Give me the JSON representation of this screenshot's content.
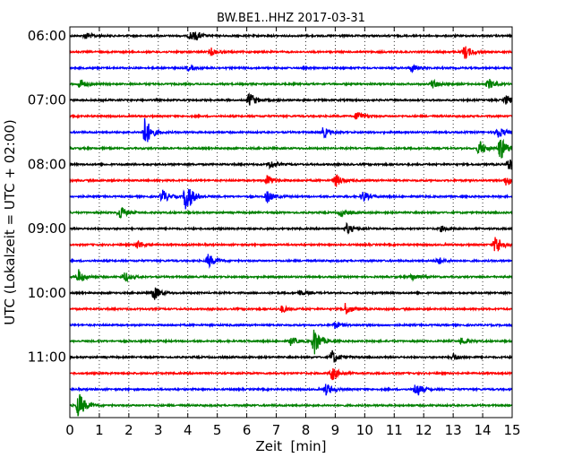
{
  "chart_data": {
    "type": "line",
    "title": "BW.BE1..HHZ 2017-03-31",
    "xlabel": "Zeit  [min]",
    "ylabel": "UTC (Lokalzeit = UTC + 02:00)",
    "xlim": [
      0,
      15
    ],
    "x_ticks": [
      "0",
      "1",
      "2",
      "3",
      "4",
      "5",
      "6",
      "7",
      "8",
      "9",
      "10",
      "11",
      "12",
      "13",
      "14",
      "15"
    ],
    "y_ticks": [
      "06:00",
      "07:00",
      "08:00",
      "09:00",
      "10:00",
      "11:00"
    ],
    "vertical_grid": "dotted",
    "trace_interval_minutes": 15,
    "trace_start": "06:00",
    "color_cycle": [
      "#000000",
      "#ff0000",
      "#0000ff",
      "#008000"
    ],
    "series": [
      {
        "start": "06:00",
        "color": "#000000",
        "events": [
          {
            "t": 0.55,
            "a": 4
          },
          {
            "t": 4.1,
            "a": 5
          },
          {
            "t": 4.3,
            "a": 3
          }
        ]
      },
      {
        "start": "06:15",
        "color": "#ff0000",
        "events": [
          {
            "t": 4.8,
            "a": 4
          },
          {
            "t": 13.4,
            "a": 8
          }
        ]
      },
      {
        "start": "06:30",
        "color": "#0000ff",
        "events": [
          {
            "t": 4.0,
            "a": 3
          },
          {
            "t": 11.6,
            "a": 4
          }
        ]
      },
      {
        "start": "06:45",
        "color": "#008000",
        "events": [
          {
            "t": 0.35,
            "a": 6
          },
          {
            "t": 12.3,
            "a": 5
          },
          {
            "t": 14.2,
            "a": 6
          }
        ]
      },
      {
        "start": "07:00",
        "color": "#000000",
        "events": [
          {
            "t": 6.1,
            "a": 9
          },
          {
            "t": 14.8,
            "a": 5
          }
        ]
      },
      {
        "start": "07:15",
        "color": "#ff0000",
        "events": [
          {
            "t": 9.75,
            "a": 6
          }
        ]
      },
      {
        "start": "07:30",
        "color": "#0000ff",
        "events": [
          {
            "t": 2.55,
            "a": 18
          },
          {
            "t": 8.6,
            "a": 6
          },
          {
            "t": 14.5,
            "a": 8
          }
        ]
      },
      {
        "start": "07:45",
        "color": "#008000",
        "events": [
          {
            "t": 13.9,
            "a": 9
          },
          {
            "t": 14.6,
            "a": 14
          }
        ]
      },
      {
        "start": "08:00",
        "color": "#000000",
        "events": [
          {
            "t": 6.8,
            "a": 5
          },
          {
            "t": 14.9,
            "a": 8
          }
        ]
      },
      {
        "start": "08:15",
        "color": "#ff0000",
        "events": [
          {
            "t": 6.7,
            "a": 6
          },
          {
            "t": 9.0,
            "a": 8
          },
          {
            "t": 14.8,
            "a": 6
          }
        ]
      },
      {
        "start": "08:30",
        "color": "#0000ff",
        "events": [
          {
            "t": 3.15,
            "a": 8
          },
          {
            "t": 3.95,
            "a": 20
          },
          {
            "t": 6.7,
            "a": 7
          },
          {
            "t": 9.95,
            "a": 6
          }
        ]
      },
      {
        "start": "08:45",
        "color": "#008000",
        "events": [
          {
            "t": 1.7,
            "a": 8
          },
          {
            "t": 9.2,
            "a": 4
          }
        ]
      },
      {
        "start": "09:00",
        "color": "#000000",
        "events": [
          {
            "t": 9.4,
            "a": 6
          },
          {
            "t": 12.6,
            "a": 3
          }
        ]
      },
      {
        "start": "09:15",
        "color": "#ff0000",
        "events": [
          {
            "t": 2.3,
            "a": 5
          },
          {
            "t": 14.45,
            "a": 12
          }
        ]
      },
      {
        "start": "09:30",
        "color": "#0000ff",
        "events": [
          {
            "t": 4.7,
            "a": 8
          },
          {
            "t": 12.5,
            "a": 4
          }
        ]
      },
      {
        "start": "09:45",
        "color": "#008000",
        "events": [
          {
            "t": 0.3,
            "a": 8
          },
          {
            "t": 1.85,
            "a": 6
          },
          {
            "t": 11.6,
            "a": 4
          }
        ]
      },
      {
        "start": "10:00",
        "color": "#000000",
        "events": [
          {
            "t": 2.85,
            "a": 8
          },
          {
            "t": 7.8,
            "a": 3
          }
        ]
      },
      {
        "start": "10:15",
        "color": "#ff0000",
        "events": [
          {
            "t": 7.2,
            "a": 4
          },
          {
            "t": 9.35,
            "a": 7
          }
        ]
      },
      {
        "start": "10:30",
        "color": "#0000ff",
        "events": [
          {
            "t": 9.0,
            "a": 4
          }
        ]
      },
      {
        "start": "10:45",
        "color": "#008000",
        "events": [
          {
            "t": 7.5,
            "a": 5
          },
          {
            "t": 8.3,
            "a": 16
          },
          {
            "t": 13.3,
            "a": 4
          }
        ]
      },
      {
        "start": "11:00",
        "color": "#000000",
        "events": [
          {
            "t": 8.9,
            "a": 8
          },
          {
            "t": 13.0,
            "a": 4
          }
        ]
      },
      {
        "start": "11:15",
        "color": "#ff0000",
        "events": [
          {
            "t": 8.9,
            "a": 8
          }
        ]
      },
      {
        "start": "11:30",
        "color": "#0000ff",
        "events": [
          {
            "t": 8.7,
            "a": 7
          },
          {
            "t": 11.75,
            "a": 9
          }
        ]
      },
      {
        "start": "11:45",
        "color": "#008000",
        "events": [
          {
            "t": 0.3,
            "a": 16
          }
        ]
      }
    ]
  }
}
